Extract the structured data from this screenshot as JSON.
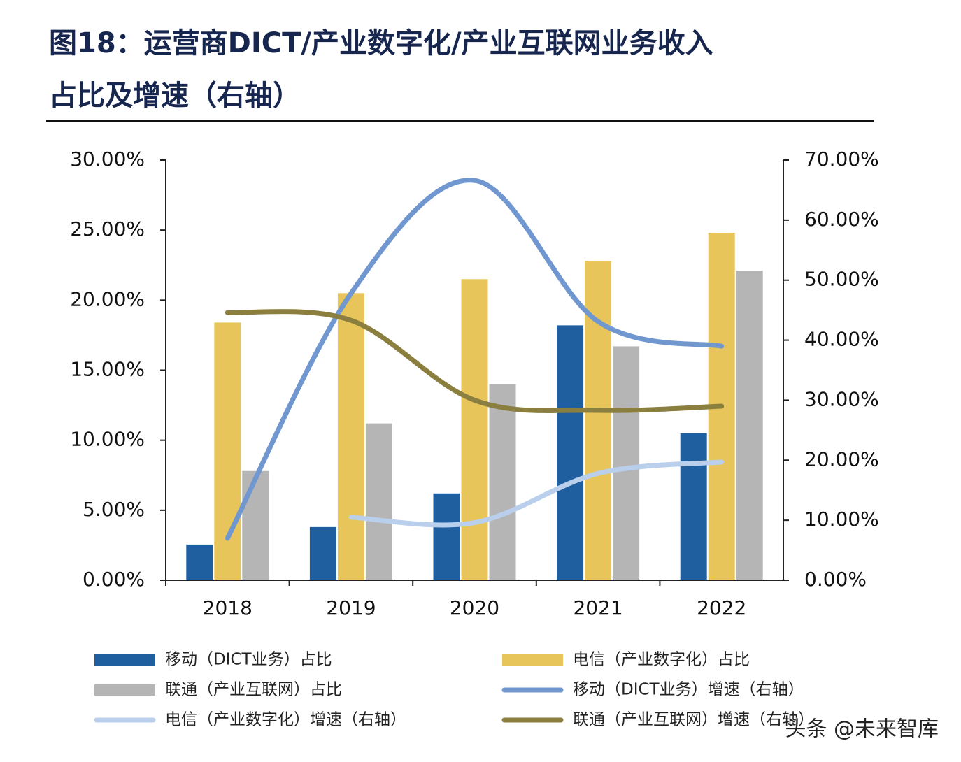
{
  "chart_data": {
    "type": "bar_line",
    "title": [
      "图18：运营商DICT/产业数字化/产业互联网业务收入",
      "占比及增速（右轴）"
    ],
    "categories": [
      "2018",
      "2019",
      "2020",
      "2021",
      "2022"
    ],
    "series": [
      {
        "name": "移动（DICT业务）占比",
        "type": "bar",
        "color": "#1f5fa0",
        "values": [
          2.55,
          3.8,
          6.2,
          18.2,
          10.5
        ]
      },
      {
        "name": "电信（产业数字化）占比",
        "type": "bar",
        "color": "#e8c55a",
        "values": [
          18.4,
          20.5,
          21.5,
          22.8,
          24.8
        ]
      },
      {
        "name": "联通（产业互联网）占比",
        "type": "bar",
        "color": "#b5b5b5",
        "values": [
          7.8,
          11.2,
          14.0,
          16.7,
          22.1
        ]
      },
      {
        "name": "移动（DICT业务）增速（右轴）",
        "type": "line",
        "axis": "y2",
        "color": "#7097cf",
        "values": [
          7.0,
          47.8,
          66.6,
          43.1,
          39.0
        ]
      },
      {
        "name": "电信（产业数字化）增速（右轴）",
        "type": "line",
        "axis": "y2",
        "color": "#b9cfeb",
        "values": [
          null,
          10.5,
          9.6,
          17.8,
          19.7
        ]
      },
      {
        "name": "联通（产业互联网）增速（右轴）",
        "type": "line",
        "axis": "y2",
        "color": "#8b7f3f",
        "values": [
          44.6,
          43.3,
          30.0,
          28.3,
          29.0
        ]
      }
    ],
    "ylim": [
      0,
      30
    ],
    "yticks": [
      {
        "value": 0,
        "label": "0.00%"
      },
      {
        "value": 5,
        "label": "5.00%"
      },
      {
        "value": 10,
        "label": "10.00%"
      },
      {
        "value": 15,
        "label": "15.00%"
      },
      {
        "value": 20,
        "label": "20.00%"
      },
      {
        "value": 25,
        "label": "25.00%"
      },
      {
        "value": 30,
        "label": "30.00%"
      }
    ],
    "y2lim": [
      0,
      70
    ],
    "y2ticks": [
      {
        "value": 0,
        "label": "0.00%"
      },
      {
        "value": 10,
        "label": "10.00%"
      },
      {
        "value": 20,
        "label": "20.00%"
      },
      {
        "value": 30,
        "label": "30.00%"
      },
      {
        "value": 40,
        "label": "40.00%"
      },
      {
        "value": 50,
        "label": "50.00%"
      },
      {
        "value": 60,
        "label": "60.00%"
      },
      {
        "value": 70,
        "label": "70.00%"
      }
    ],
    "watermark": "头条 @未来智库"
  }
}
